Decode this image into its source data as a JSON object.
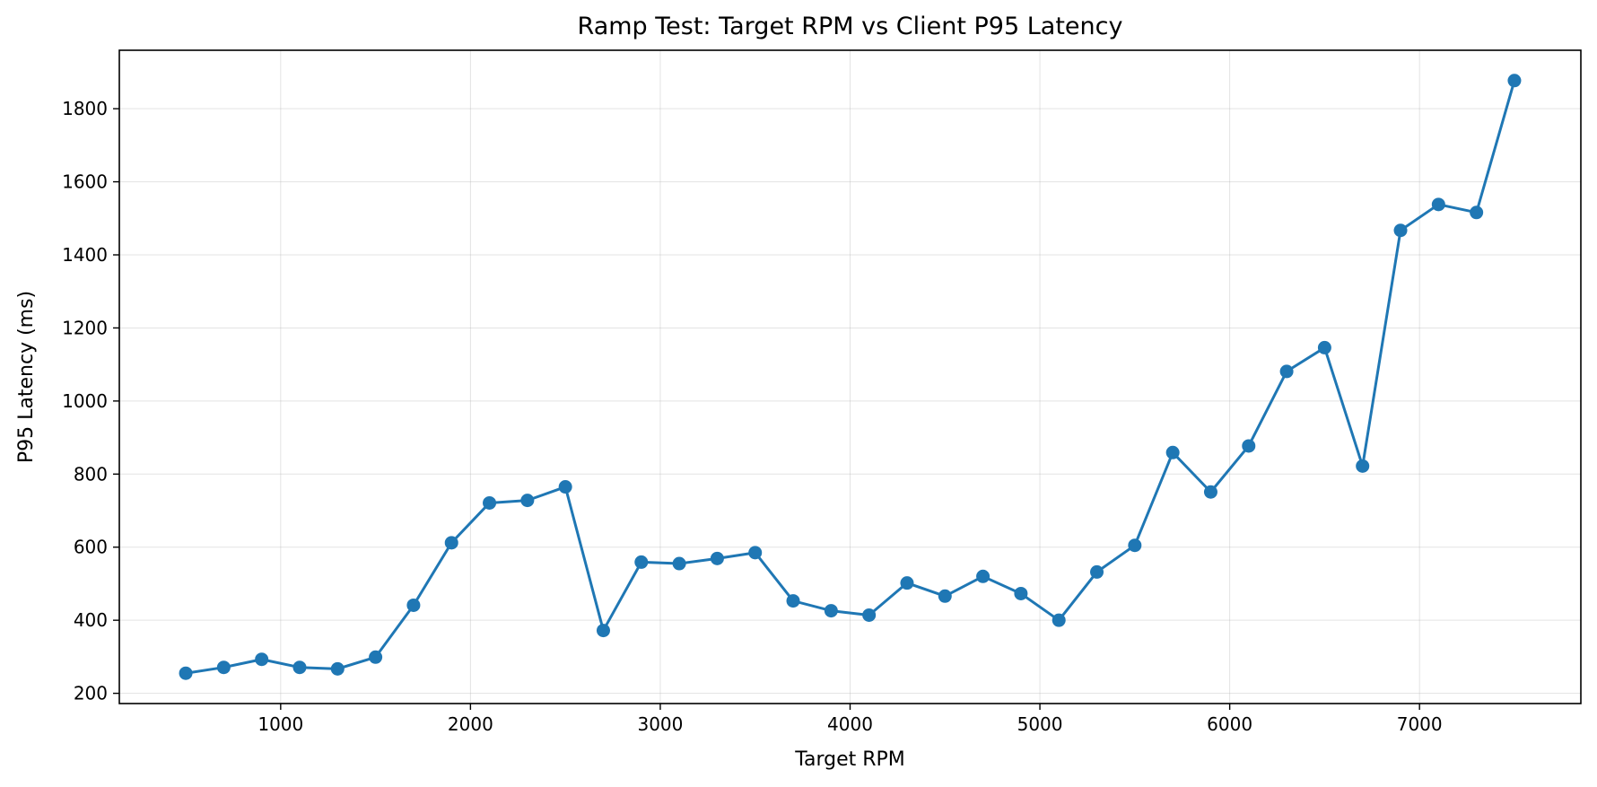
{
  "chart_data": {
    "type": "line",
    "title": "Ramp Test: Target RPM vs Client P95 Latency",
    "xlabel": "Target RPM",
    "ylabel": "P95 Latency (ms)",
    "xlim": [
      150,
      7850
    ],
    "ylim": [
      172,
      1960
    ],
    "xticks": [
      1000,
      2000,
      3000,
      4000,
      5000,
      6000,
      7000
    ],
    "yticks": [
      200,
      400,
      600,
      800,
      1000,
      1200,
      1400,
      1600,
      1800
    ],
    "grid": true,
    "legend": "none",
    "series": [
      {
        "color": "#1f77b4",
        "marker": "circle",
        "x": [
          500,
          700,
          900,
          1100,
          1300,
          1500,
          1700,
          1900,
          2100,
          2300,
          2500,
          2700,
          2900,
          3100,
          3300,
          3500,
          3700,
          3900,
          4100,
          4300,
          4500,
          4700,
          4900,
          5100,
          5300,
          5500,
          5700,
          5900,
          6100,
          6300,
          6500,
          6700,
          6900,
          7100,
          7300,
          7500
        ],
        "y": [
          255,
          271,
          293,
          271,
          267,
          299,
          441,
          612,
          721,
          728,
          765,
          372,
          559,
          555,
          569,
          585,
          453,
          426,
          414,
          502,
          466,
          520,
          473,
          400,
          532,
          605,
          859,
          751,
          877,
          1081,
          1146,
          822,
          1467,
          1538,
          1516,
          1877
        ]
      }
    ]
  }
}
